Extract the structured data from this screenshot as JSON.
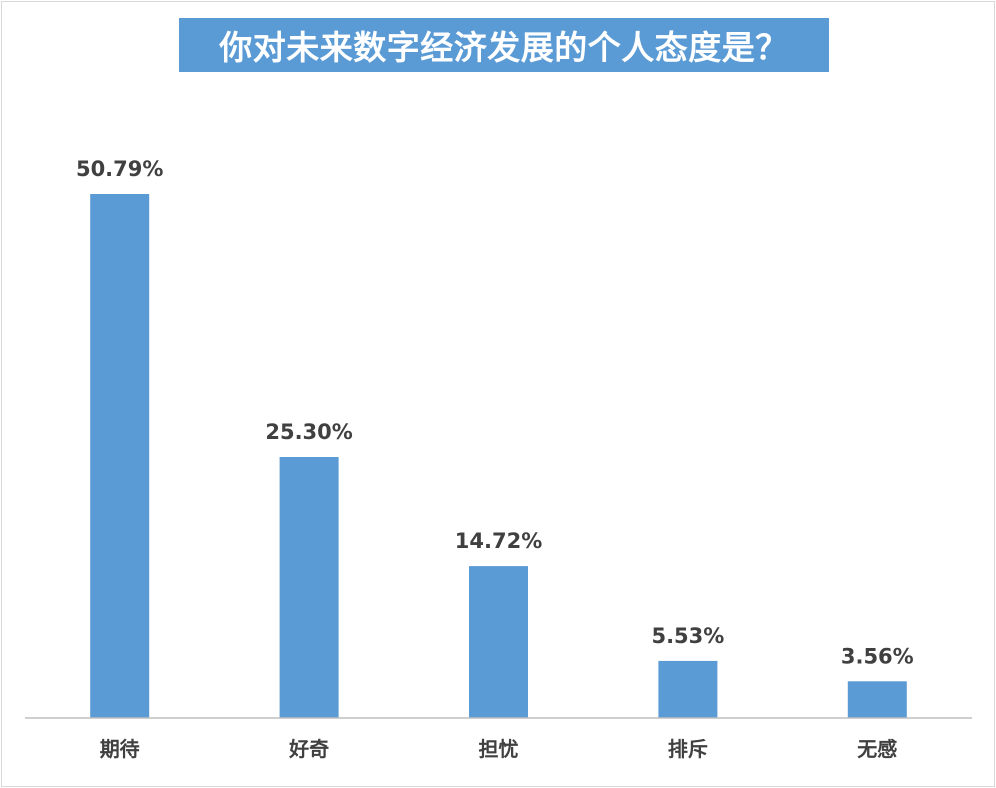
{
  "chart_data": {
    "type": "bar",
    "title": "你对未来数字经济发展的个人态度是？",
    "categories": [
      "期待",
      "好奇",
      "担忧",
      "排斥",
      "无感"
    ],
    "values": [
      50.79,
      25.3,
      14.72,
      5.53,
      3.56
    ],
    "data_labels": [
      "50.79%",
      "25.30%",
      "14.72%",
      "5.53%",
      "3.56%"
    ],
    "unit": "%",
    "xlabel": "",
    "ylabel": "",
    "ylim": [
      0,
      50.79
    ],
    "grid": false,
    "legend": "none",
    "colors": {
      "bar": "#5b9bd5",
      "title_bg": "#5b9bd5",
      "title_text": "#ffffff",
      "label_text": "#404040"
    }
  }
}
